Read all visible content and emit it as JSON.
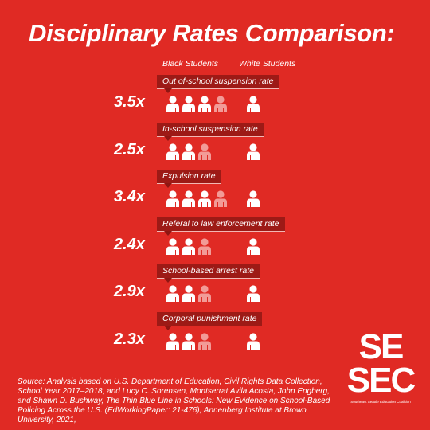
{
  "title": "Disciplinary Rates Comparison:",
  "legend": {
    "group_a": "Black Students",
    "group_b": "White Students"
  },
  "colors": {
    "background": "#e02a24",
    "label_bg": "#9d1a16",
    "icon": "#ffffff",
    "icon_partial": "#f29b97"
  },
  "chart_data": {
    "type": "pictograph",
    "title": "Disciplinary Rates Comparison:",
    "series": [
      {
        "name": "Black Students"
      },
      {
        "name": "White Students"
      }
    ],
    "rows": [
      {
        "label": "Out of-school suspension rate",
        "ratio_label": "3.5x",
        "black": 3.5,
        "white": 1
      },
      {
        "label": "In-school suspension rate",
        "ratio_label": "2.5x",
        "black": 2.5,
        "white": 1
      },
      {
        "label": "Expulsion rate",
        "ratio_label": "3.4x",
        "black": 3.4,
        "white": 1
      },
      {
        "label": "Referal to law enforcement rate",
        "ratio_label": "2.4x",
        "black": 2.4,
        "white": 1
      },
      {
        "label": "School-based arrest rate",
        "ratio_label": "2.9x",
        "black": 2.9,
        "white": 1
      },
      {
        "label": "Corporal punishment rate",
        "ratio_label": "2.3x",
        "black": 2.3,
        "white": 1
      }
    ]
  },
  "source": "Source: Analysis based on U.S. Department of Education, Civil Rights Data Collection, School Year 2017–2018; and Lucy C. Sorensen, Montserrat Avila Acosta, John Engberg, and Shawn D. Bushway, The Thin Blue Line in Schools: New Evidence on School-Based Policing Across the U.S. (EdWorkingPaper: 21-476), Annenberg Institute at Brown University, 2021,",
  "logo": {
    "text": "SE SEC",
    "subtitle": "Southeast Seattle Education Coalition"
  }
}
